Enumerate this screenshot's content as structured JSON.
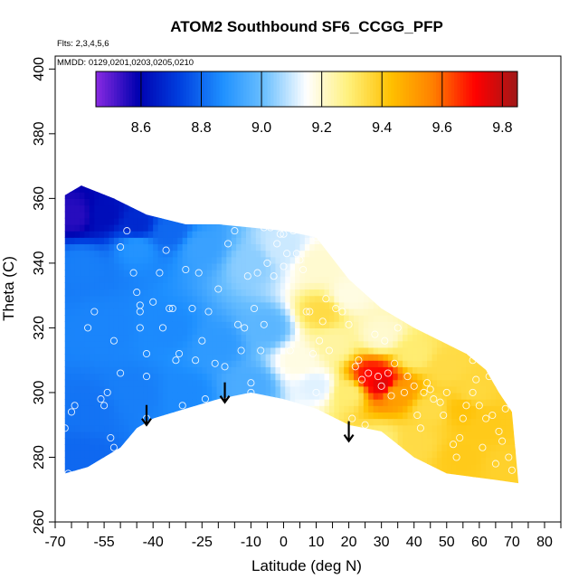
{
  "chart_data": {
    "type": "heatmap",
    "title": "ATOM2 Southbound SF6_CCGG_PFP",
    "xlabel": "Latitude (deg N)",
    "ylabel": "Theta (C)",
    "xlim": [
      -70,
      85
    ],
    "ylim": [
      260,
      404
    ],
    "x_ticks": [
      -70,
      -65,
      -60,
      -55,
      -50,
      -45,
      -40,
      -35,
      -30,
      -25,
      -20,
      -15,
      -10,
      -5,
      0,
      5,
      10,
      15,
      20,
      25,
      30,
      35,
      40,
      45,
      50,
      55,
      60,
      65,
      70,
      75,
      80,
      85
    ],
    "x_tick_labels": [
      "-70",
      "-55",
      "-40",
      "-25",
      "-10",
      "0",
      "10",
      "20",
      "30",
      "40",
      "50",
      "60",
      "70",
      "80"
    ],
    "y_ticks": [
      260,
      280,
      300,
      320,
      340,
      360,
      380,
      400
    ],
    "y_tick_labels": [
      "260",
      "280",
      "300",
      "320",
      "340",
      "360",
      "380",
      "400"
    ],
    "annotations": [
      "Flts: 2,3,4,5,6",
      "MMDD: 0129,0201,0203,0205,0210"
    ],
    "colorbar": {
      "range": [
        8.45,
        9.85
      ],
      "boundaries": [
        8.6,
        8.8,
        9.0,
        9.2,
        9.4,
        9.6,
        9.8
      ],
      "tick_labels": [
        "8.6",
        "8.8",
        "9.0",
        "9.2",
        "9.4",
        "9.6",
        "9.8"
      ],
      "colors": [
        "#8a2be2",
        "#0000b0",
        "#0040e0",
        "#1e90ff",
        "#6cc0ff",
        "#ffffff",
        "#fff07a",
        "#ffc000",
        "#ff8000",
        "#ff0000",
        "#a01818"
      ]
    },
    "arrows": [
      {
        "lat": -42,
        "theta": 290
      },
      {
        "lat": -18,
        "theta": 297
      },
      {
        "lat": 20,
        "theta": 285
      }
    ],
    "boundary_top": [
      [
        -67,
        361
      ],
      [
        -62,
        364
      ],
      [
        -52,
        360
      ],
      [
        -42,
        355
      ],
      [
        -30,
        352
      ],
      [
        -20,
        352
      ],
      [
        -10,
        351
      ],
      [
        0,
        350
      ],
      [
        10,
        348
      ],
      [
        20,
        335
      ],
      [
        30,
        326
      ],
      [
        40,
        320
      ],
      [
        50,
        315
      ],
      [
        56,
        312
      ],
      [
        62,
        307
      ],
      [
        66,
        300
      ],
      [
        70,
        294
      ],
      [
        72,
        272
      ]
    ],
    "boundary_bottom": [
      [
        72,
        272
      ],
      [
        65,
        273
      ],
      [
        50,
        275
      ],
      [
        40,
        280
      ],
      [
        30,
        288
      ],
      [
        20,
        290
      ],
      [
        10,
        295
      ],
      [
        0,
        298
      ],
      [
        -10,
        300
      ],
      [
        -20,
        298
      ],
      [
        -30,
        295
      ],
      [
        -40,
        292
      ],
      [
        -45,
        289
      ],
      [
        -50,
        283
      ],
      [
        -60,
        277
      ],
      [
        -67,
        275
      ]
    ],
    "value_points": [
      {
        "lat": -64,
        "theta": 355,
        "v": 8.55
      },
      {
        "lat": -55,
        "theta": 355,
        "v": 8.62
      },
      {
        "lat": -45,
        "theta": 352,
        "v": 8.68
      },
      {
        "lat": -35,
        "theta": 350,
        "v": 8.8
      },
      {
        "lat": -62,
        "theta": 340,
        "v": 8.84
      },
      {
        "lat": -45,
        "theta": 345,
        "v": 8.88
      },
      {
        "lat": -25,
        "theta": 345,
        "v": 8.92
      },
      {
        "lat": -10,
        "theta": 340,
        "v": 9.04
      },
      {
        "lat": 0,
        "theta": 345,
        "v": 9.1
      },
      {
        "lat": 10,
        "theta": 340,
        "v": 9.2
      },
      {
        "lat": 20,
        "theta": 330,
        "v": 9.18
      },
      {
        "lat": 12,
        "theta": 325,
        "v": 9.35
      },
      {
        "lat": -55,
        "theta": 320,
        "v": 8.85
      },
      {
        "lat": -35,
        "theta": 320,
        "v": 8.86
      },
      {
        "lat": -20,
        "theta": 315,
        "v": 8.9
      },
      {
        "lat": -5,
        "theta": 320,
        "v": 8.98
      },
      {
        "lat": 5,
        "theta": 310,
        "v": 9.18
      },
      {
        "lat": 15,
        "theta": 315,
        "v": 9.25
      },
      {
        "lat": 30,
        "theta": 318,
        "v": 9.2
      },
      {
        "lat": 40,
        "theta": 312,
        "v": 9.3
      },
      {
        "lat": 50,
        "theta": 308,
        "v": 9.35
      },
      {
        "lat": -60,
        "theta": 295,
        "v": 8.82
      },
      {
        "lat": -45,
        "theta": 300,
        "v": 8.84
      },
      {
        "lat": -30,
        "theta": 300,
        "v": 8.86
      },
      {
        "lat": -10,
        "theta": 302,
        "v": 8.95
      },
      {
        "lat": 10,
        "theta": 302,
        "v": 9.12
      },
      {
        "lat": 20,
        "theta": 300,
        "v": 9.3
      },
      {
        "lat": 27,
        "theta": 305,
        "v": 9.7
      },
      {
        "lat": 30,
        "theta": 303,
        "v": 9.75
      },
      {
        "lat": 35,
        "theta": 300,
        "v": 9.5
      },
      {
        "lat": 45,
        "theta": 295,
        "v": 9.35
      },
      {
        "lat": 55,
        "theta": 295,
        "v": 9.42
      },
      {
        "lat": 62,
        "theta": 290,
        "v": 9.4
      },
      {
        "lat": -62,
        "theta": 280,
        "v": 8.8
      },
      {
        "lat": 30,
        "theta": 285,
        "v": 9.3
      },
      {
        "lat": 40,
        "theta": 285,
        "v": 9.35
      },
      {
        "lat": 55,
        "theta": 280,
        "v": 9.4
      },
      {
        "lat": 68,
        "theta": 278,
        "v": 9.38
      },
      {
        "lat": 58,
        "theta": 300,
        "v": 9.36
      }
    ],
    "sample_points": [
      [
        -65,
        294
      ],
      [
        -64,
        296
      ],
      [
        -67,
        289
      ],
      [
        -66,
        275
      ],
      [
        -60,
        320
      ],
      [
        -58,
        325
      ],
      [
        -56,
        298
      ],
      [
        -55,
        296
      ],
      [
        -54,
        300
      ],
      [
        -53,
        286
      ],
      [
        -52,
        283
      ],
      [
        -52,
        316
      ],
      [
        -50,
        306
      ],
      [
        -50,
        345
      ],
      [
        -48,
        350
      ],
      [
        -46,
        337
      ],
      [
        -45,
        331
      ],
      [
        -44,
        327
      ],
      [
        -44,
        325
      ],
      [
        -44,
        320
      ],
      [
        -42,
        292
      ],
      [
        -42,
        305
      ],
      [
        -42,
        312
      ],
      [
        -40,
        328
      ],
      [
        -38,
        337
      ],
      [
        -37,
        320
      ],
      [
        -36,
        344
      ],
      [
        -35,
        326
      ],
      [
        -34,
        326
      ],
      [
        -33,
        310
      ],
      [
        -32,
        312
      ],
      [
        -31,
        296
      ],
      [
        -30,
        338
      ],
      [
        -28,
        326
      ],
      [
        -27,
        310
      ],
      [
        -26,
        337
      ],
      [
        -25,
        316
      ],
      [
        -24,
        298
      ],
      [
        -23,
        325
      ],
      [
        -21,
        309
      ],
      [
        -20,
        332
      ],
      [
        -18,
        308
      ],
      [
        -17,
        346
      ],
      [
        -15,
        350
      ],
      [
        -14,
        321
      ],
      [
        -13,
        313
      ],
      [
        -12,
        320
      ],
      [
        -11,
        336
      ],
      [
        -10,
        303
      ],
      [
        -10,
        300
      ],
      [
        -9,
        326
      ],
      [
        -8,
        337
      ],
      [
        -7,
        313
      ],
      [
        -6,
        351
      ],
      [
        -6,
        321
      ],
      [
        -5,
        340
      ],
      [
        -4,
        351
      ],
      [
        -3,
        336
      ],
      [
        -2,
        346
      ],
      [
        -1,
        349
      ],
      [
        0,
        349
      ],
      [
        0,
        339
      ],
      [
        1,
        343
      ],
      [
        2,
        313
      ],
      [
        3,
        350
      ],
      [
        4,
        343
      ],
      [
        5,
        341
      ],
      [
        6,
        338
      ],
      [
        7,
        325
      ],
      [
        8,
        325
      ],
      [
        9,
        312
      ],
      [
        10,
        348
      ],
      [
        10,
        300
      ],
      [
        11,
        316
      ],
      [
        12,
        322
      ],
      [
        13,
        329
      ],
      [
        14,
        313
      ],
      [
        16,
        326
      ],
      [
        18,
        325
      ],
      [
        20,
        321
      ],
      [
        21,
        292
      ],
      [
        22,
        308
      ],
      [
        23,
        310
      ],
      [
        24,
        304
      ],
      [
        25,
        290
      ],
      [
        26,
        306
      ],
      [
        28,
        318
      ],
      [
        29,
        305
      ],
      [
        30,
        302
      ],
      [
        31,
        316
      ],
      [
        32,
        306
      ],
      [
        33,
        299
      ],
      [
        34,
        309
      ],
      [
        35,
        320
      ],
      [
        37,
        300
      ],
      [
        38,
        305
      ],
      [
        40,
        302
      ],
      [
        41,
        293
      ],
      [
        42,
        289
      ],
      [
        43,
        300
      ],
      [
        44,
        303
      ],
      [
        45,
        301
      ],
      [
        46,
        298
      ],
      [
        48,
        297
      ],
      [
        49,
        293
      ],
      [
        50,
        300
      ],
      [
        52,
        284
      ],
      [
        53,
        280
      ],
      [
        54,
        286
      ],
      [
        55,
        292
      ],
      [
        56,
        296
      ],
      [
        58,
        300
      ],
      [
        58,
        310
      ],
      [
        59,
        304
      ],
      [
        60,
        296
      ],
      [
        61,
        283
      ],
      [
        62,
        292
      ],
      [
        63,
        305
      ],
      [
        64,
        293
      ],
      [
        65,
        278
      ],
      [
        66,
        288
      ],
      [
        67,
        285
      ],
      [
        68,
        295
      ],
      [
        69,
        280
      ],
      [
        70,
        276
      ]
    ]
  }
}
